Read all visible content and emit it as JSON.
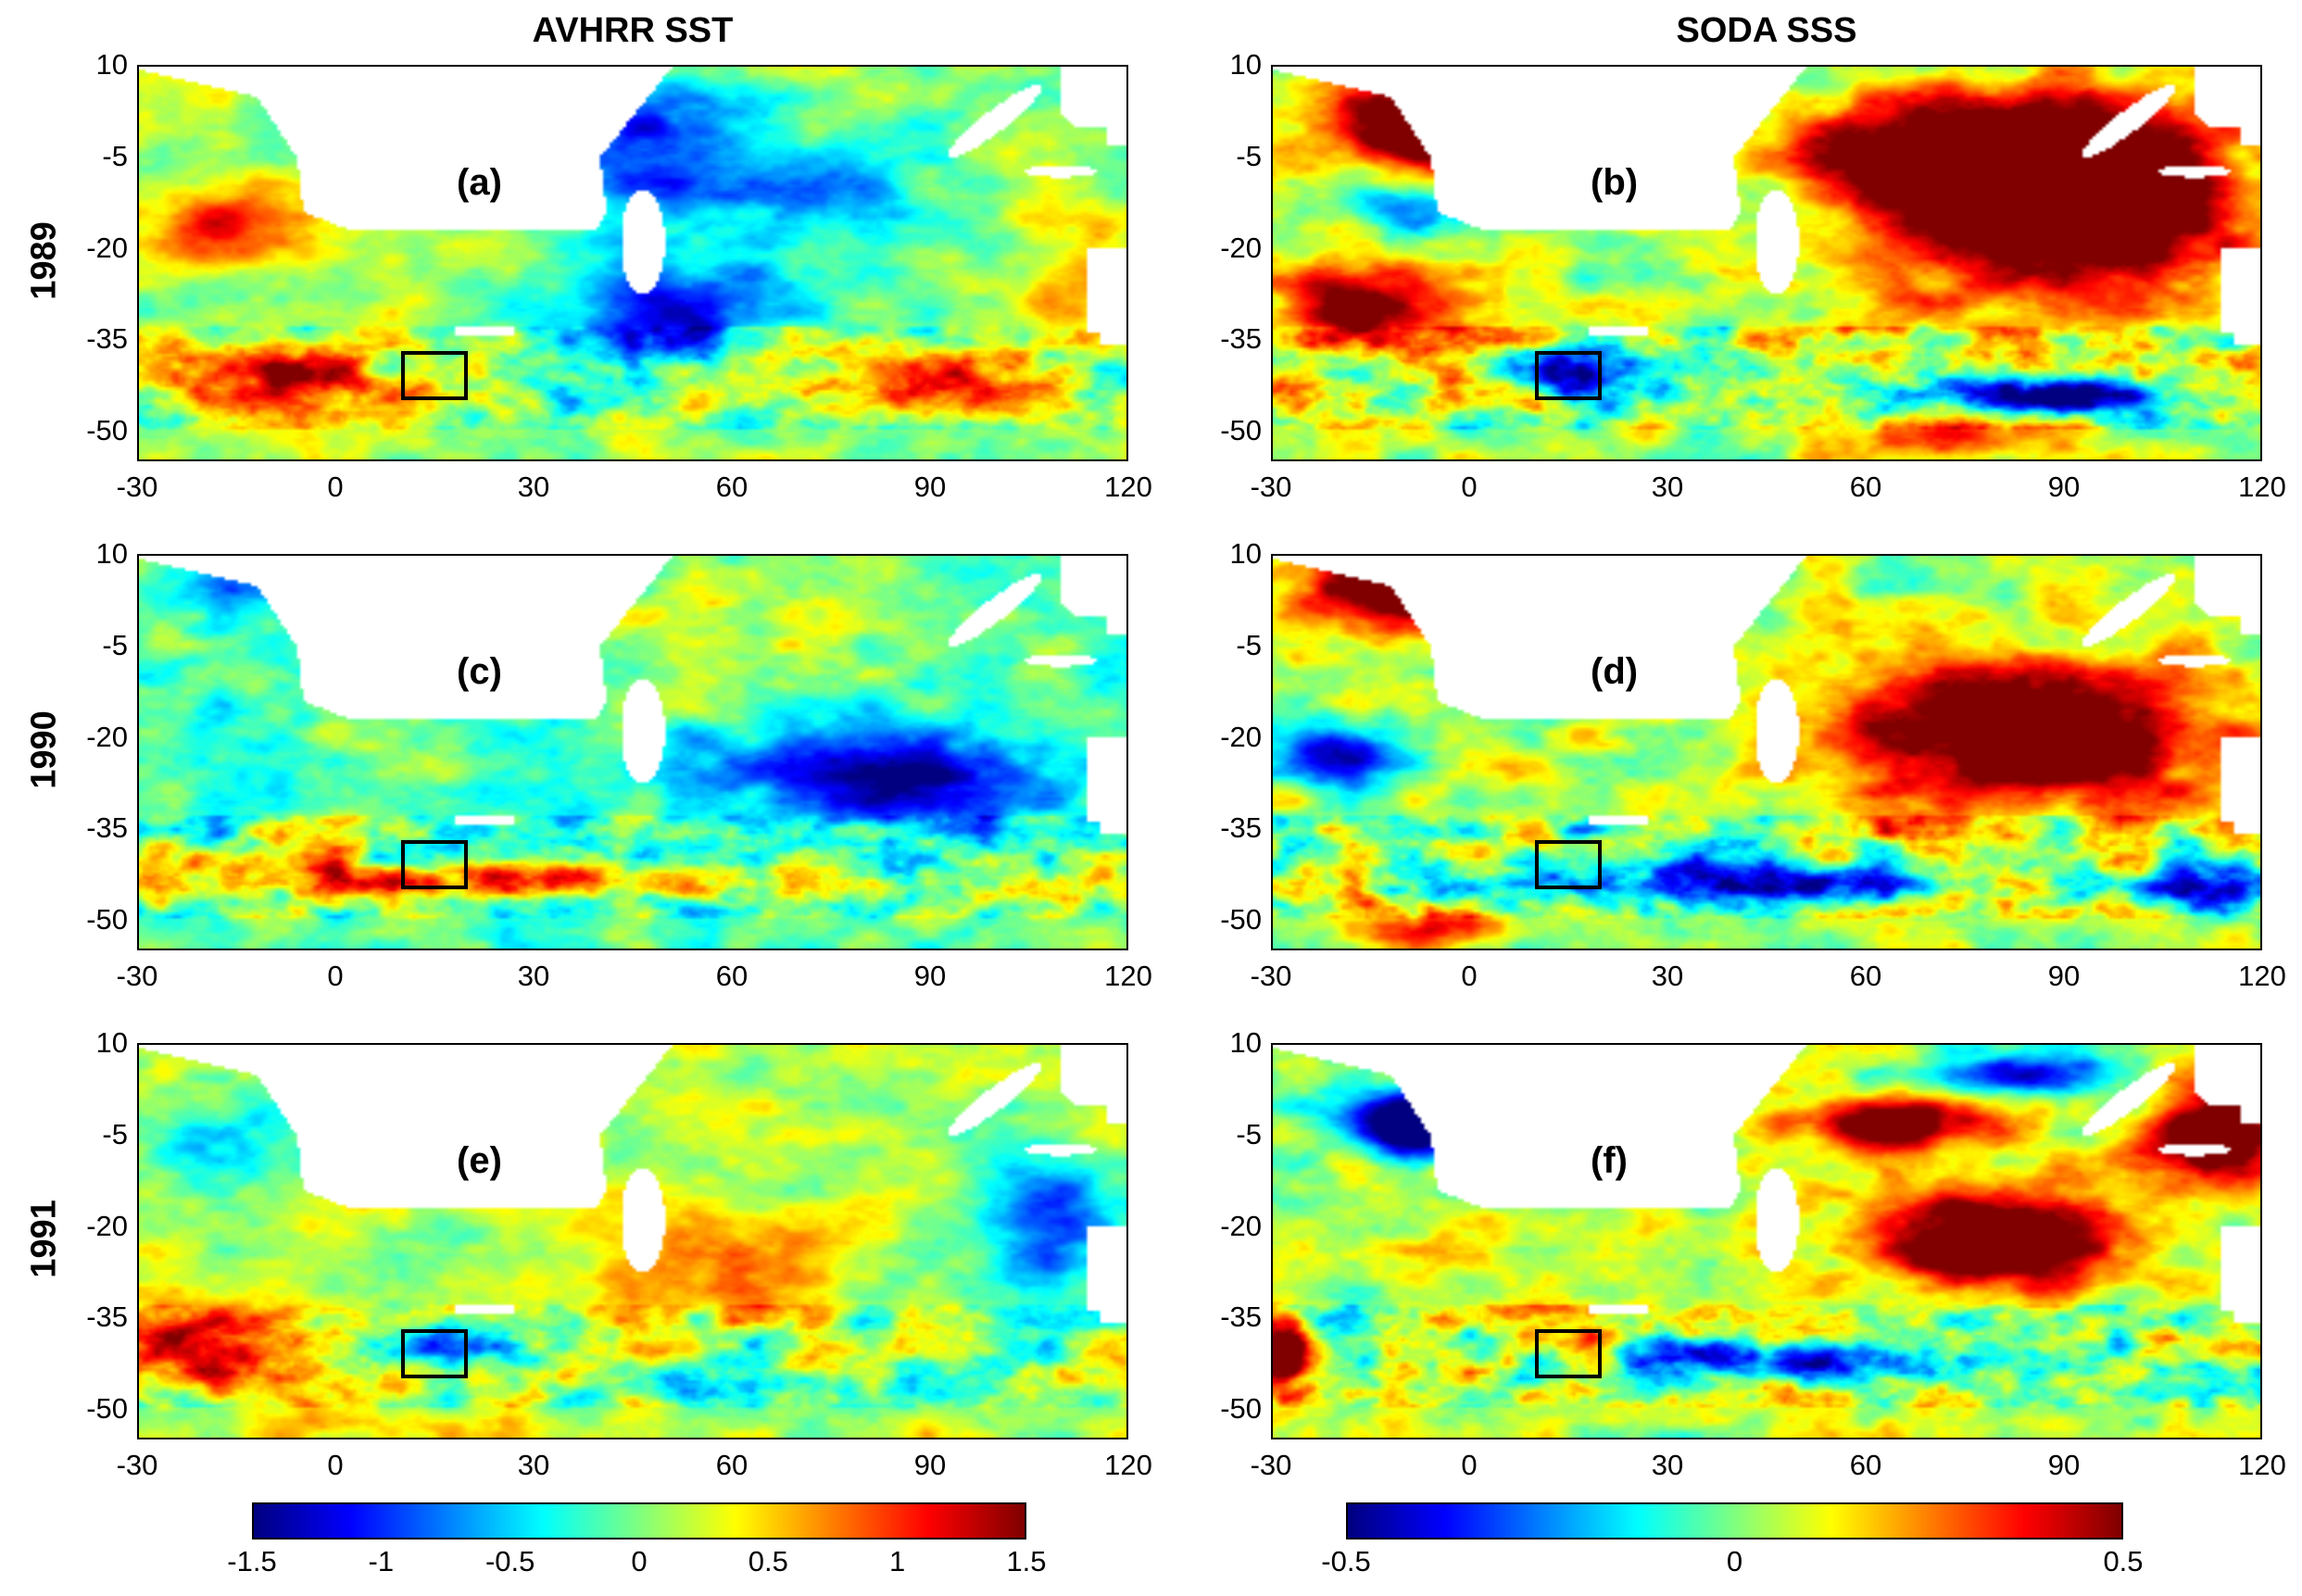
{
  "columns": [
    {
      "title": "AVHRR SST"
    },
    {
      "title": "SODA SSS"
    }
  ],
  "rows": [
    {
      "label": "1989"
    },
    {
      "label": "1990"
    },
    {
      "label": "1991"
    }
  ],
  "panels": [
    {
      "letter": "(a)",
      "variable": "SST",
      "year": "1989",
      "pattern": "sst89"
    },
    {
      "letter": "(b)",
      "variable": "SSS",
      "year": "1989",
      "pattern": "sss89"
    },
    {
      "letter": "(c)",
      "variable": "SST",
      "year": "1990",
      "pattern": "sst90"
    },
    {
      "letter": "(d)",
      "variable": "SSS",
      "year": "1990",
      "pattern": "sss90"
    },
    {
      "letter": "(e)",
      "variable": "SST",
      "year": "1991",
      "pattern": "sst91"
    },
    {
      "letter": "(f)",
      "variable": "SSS",
      "year": "1991",
      "pattern": "sss91"
    }
  ],
  "chart_data": {
    "type": "heatmap",
    "title": "",
    "xaxis": {
      "range": [
        -30,
        120
      ],
      "ticks": [
        "-30",
        "0",
        "30",
        "60",
        "90",
        "120"
      ]
    },
    "yaxis": {
      "range": [
        -55,
        10
      ],
      "ticks": [
        "10",
        "-5",
        "-20",
        "-35",
        "-50"
      ]
    },
    "region_box": {
      "lon": [
        10,
        20
      ],
      "lat": [
        -45,
        -37
      ]
    },
    "colormap": "jet",
    "colorbars": [
      {
        "variable": "SST",
        "range": [
          -1.5,
          1.5
        ],
        "ticks": [
          "-1.5",
          "-1",
          "-0.5",
          "0",
          "0.5",
          "1",
          "1.5"
        ]
      },
      {
        "variable": "SSS",
        "range": [
          -0.5,
          0.5
        ],
        "ticks": [
          "-0.5",
          "0",
          "0.5"
        ]
      }
    ]
  }
}
